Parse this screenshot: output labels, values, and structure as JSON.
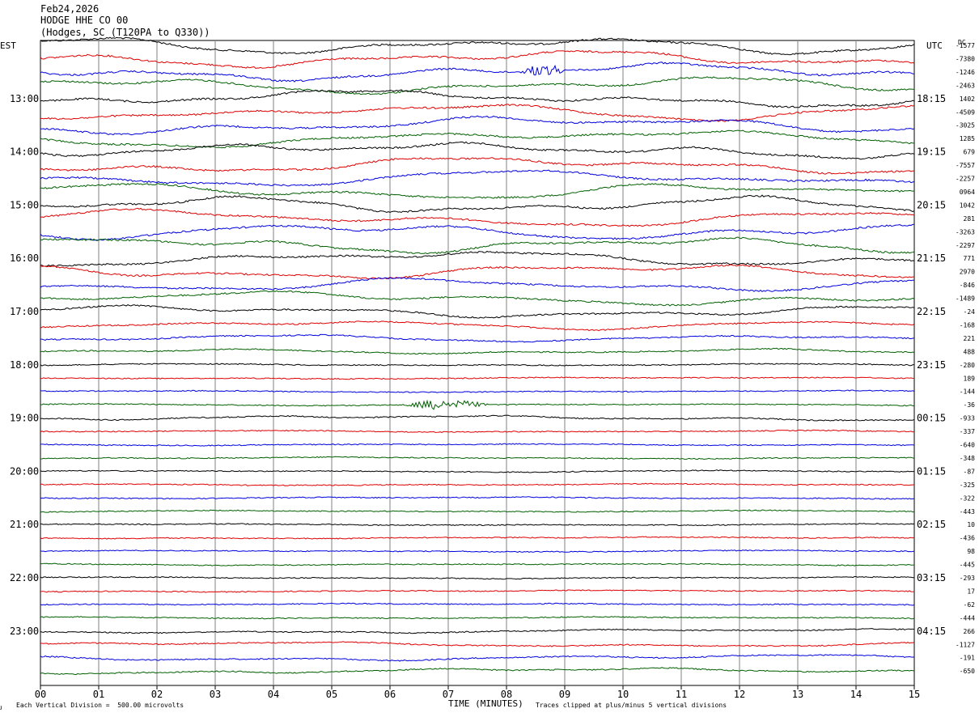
{
  "header": {
    "date": "Feb24,2026",
    "station": "HODGE HHE CO 00",
    "location": "(Hodges, SC (T120PA to Q330))"
  },
  "left_label": "EST",
  "right_label": "UTC",
  "dc_label": "DC",
  "footer": {
    "scale_note": "Each Vertical Division =  500.00 microvolts",
    "clip_note": "Traces clipped at plus/minus 5 vertical divisions",
    "x_axis_title": "TIME (MINUTES)",
    "logo": "ᴊ"
  },
  "colors": {
    "trace_cycle": [
      "#000000",
      "#e00000",
      "#0000e0",
      "#006000"
    ],
    "grid": "#808080"
  },
  "chart_data": {
    "type": "line",
    "title": "HODGE HHE CO 00",
    "xlabel": "TIME (MINUTES)",
    "xlim": [
      0,
      15
    ],
    "x_ticks": [
      "00",
      "01",
      "02",
      "03",
      "04",
      "05",
      "06",
      "07",
      "08",
      "09",
      "10",
      "11",
      "12",
      "13",
      "14",
      "15"
    ],
    "grid": "vertical every minute",
    "rows_per_hour": 4,
    "minutes_per_row": 15,
    "est_hour_labels": [
      "13:00",
      "14:00",
      "15:00",
      "16:00",
      "17:00",
      "18:00",
      "19:00",
      "20:00",
      "21:00",
      "22:00",
      "23:00"
    ],
    "utc_hour_labels": [
      "18:15",
      "19:15",
      "20:15",
      "21:15",
      "22:15",
      "23:15",
      "00:15",
      "01:15",
      "02:15",
      "03:15",
      "04:15"
    ],
    "dc_offsets": [
      "-1577",
      "-7380",
      "-1246",
      "-2463",
      "1402",
      "-4509",
      "-3025",
      "1285",
      "679",
      "-7557",
      "-2257",
      "0964",
      "1042",
      "281",
      "-3263",
      "-2297",
      "771",
      "2970",
      "-846",
      "-1489",
      "-24",
      "-168",
      "221",
      "488",
      "-280",
      "189",
      "-144",
      "-36",
      "-933",
      "-337",
      "-640",
      "-348",
      "-87",
      "-325",
      "-322",
      "-443",
      "10",
      "-436",
      "98",
      "-445",
      "-293",
      "17",
      "-62",
      "-444",
      "266",
      "-1127",
      "-191",
      "-650"
    ],
    "trace_amplitude": [
      1.0,
      1.0,
      1.0,
      1.0,
      1.0,
      1.0,
      1.0,
      1.0,
      1.0,
      1.0,
      1.0,
      1.0,
      1.0,
      1.0,
      0.95,
      0.95,
      0.9,
      0.9,
      0.8,
      0.8,
      0.7,
      0.55,
      0.4,
      0.3,
      0.12,
      0.1,
      0.1,
      0.1,
      0.3,
      0.1,
      0.1,
      0.1,
      0.1,
      0.1,
      0.1,
      0.1,
      0.1,
      0.1,
      0.1,
      0.1,
      0.1,
      0.1,
      0.1,
      0.1,
      0.25,
      0.3,
      0.35,
      0.35
    ],
    "events": [
      {
        "row": 2,
        "start_min": 8.2,
        "end_min": 9.3,
        "amplitude": 0.6,
        "series": "blue"
      },
      {
        "row": 27,
        "start_min": 6.2,
        "end_min": 8.2,
        "amplitude": 0.45,
        "series": "green"
      }
    ]
  }
}
